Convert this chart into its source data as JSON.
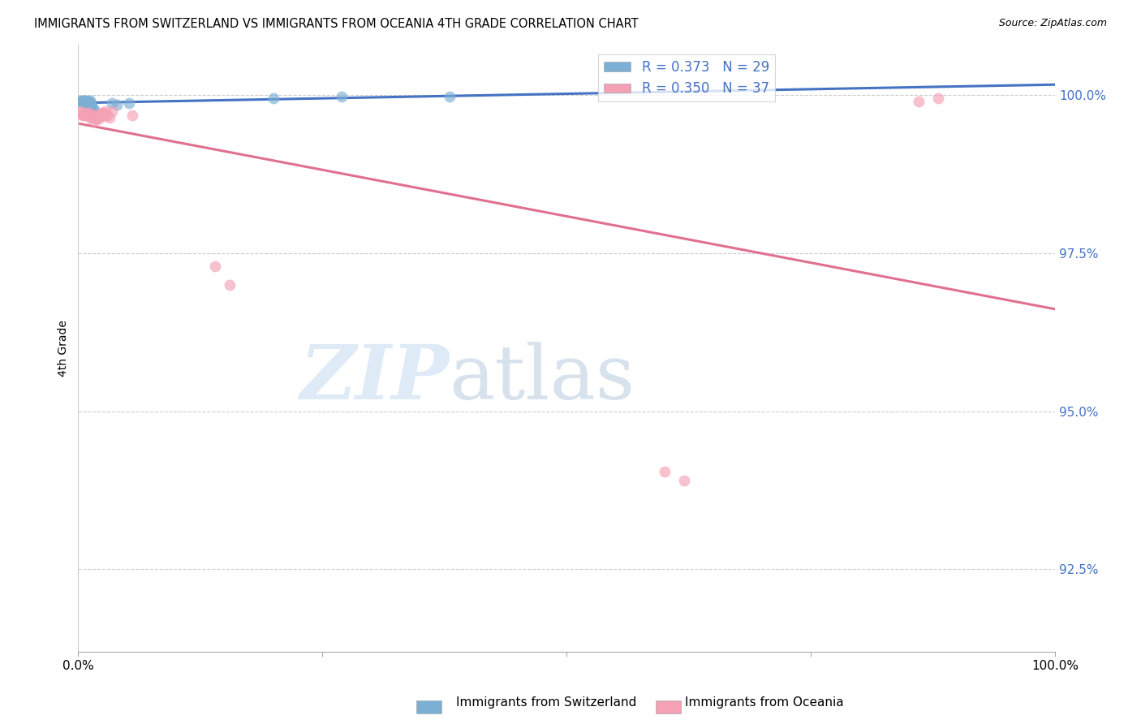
{
  "title": "IMMIGRANTS FROM SWITZERLAND VS IMMIGRANTS FROM OCEANIA 4TH GRADE CORRELATION CHART",
  "source": "Source: ZipAtlas.com",
  "ylabel": "4th Grade",
  "y_tick_values": [
    0.925,
    0.95,
    0.975,
    1.0
  ],
  "xlim": [
    0.0,
    1.0
  ],
  "ylim": [
    0.912,
    1.008
  ],
  "color_blue": "#7bafd4",
  "color_pink": "#f4a0b5",
  "line_blue": "#4472c4",
  "line_pink": "#e07090",
  "marker_size": 100,
  "blue_x": [
    0.002,
    0.003,
    0.004,
    0.005,
    0.005,
    0.006,
    0.006,
    0.007,
    0.007,
    0.008,
    0.008,
    0.009,
    0.009,
    0.01,
    0.01,
    0.011,
    0.011,
    0.012,
    0.013,
    0.013,
    0.014,
    0.015,
    0.016,
    0.035,
    0.04,
    0.052,
    0.2,
    0.27,
    0.38
  ],
  "blue_y": [
    0.999,
    0.9992,
    0.999,
    0.9992,
    0.9988,
    0.999,
    0.9992,
    0.999,
    0.9988,
    0.999,
    0.9988,
    0.9992,
    0.999,
    0.999,
    0.9988,
    0.999,
    0.9988,
    0.9992,
    0.9988,
    0.9985,
    0.9982,
    0.998,
    0.9978,
    0.9988,
    0.9985,
    0.9988,
    0.9995,
    0.9998,
    0.9998
  ],
  "pink_x": [
    0.002,
    0.003,
    0.004,
    0.005,
    0.006,
    0.007,
    0.008,
    0.009,
    0.01,
    0.011,
    0.012,
    0.013,
    0.014,
    0.015,
    0.016,
    0.017,
    0.018,
    0.019,
    0.02,
    0.021,
    0.022,
    0.023,
    0.024,
    0.025,
    0.026,
    0.027,
    0.028,
    0.03,
    0.032,
    0.035,
    0.055,
    0.14,
    0.155,
    0.6,
    0.62,
    0.86,
    0.88
  ],
  "pink_y": [
    0.9975,
    0.9972,
    0.997,
    0.9968,
    0.9968,
    0.997,
    0.9968,
    0.9972,
    0.9968,
    0.9972,
    0.9965,
    0.997,
    0.9968,
    0.9965,
    0.996,
    0.9965,
    0.9965,
    0.9968,
    0.9962,
    0.9968,
    0.9965,
    0.9968,
    0.9972,
    0.9968,
    0.9972,
    0.9968,
    0.9975,
    0.9968,
    0.9965,
    0.9975,
    0.9968,
    0.973,
    0.97,
    0.9405,
    0.939,
    0.999,
    0.9995
  ]
}
